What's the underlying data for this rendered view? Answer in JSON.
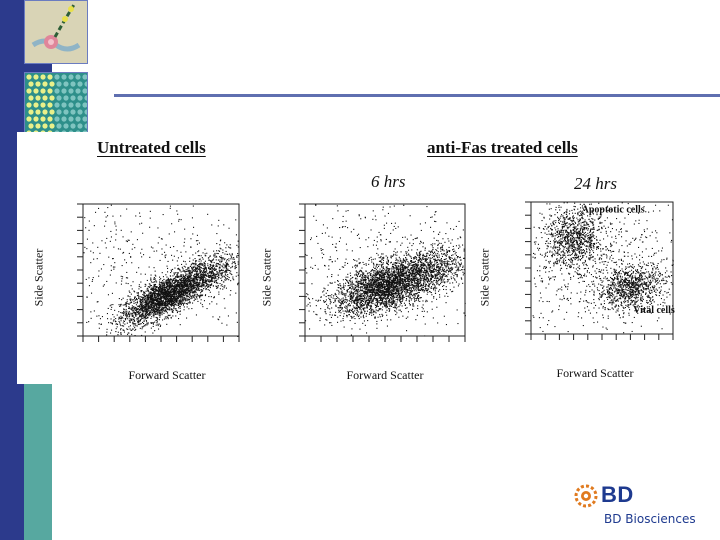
{
  "slide": {
    "colors": {
      "sidebar": "#2c3a8c",
      "rule": "#5f6fb0",
      "brand": "#1e3a8f",
      "logo_orange": "#e07a1f"
    },
    "decor_icons": [
      "lipid-bilayer-thumbnail-icon",
      "cell-array-thumbnail-icon"
    ]
  },
  "figure": {
    "heading_left": "Untreated cells",
    "heading_right": "anti-Fas treated cells",
    "time_6": "6 hrs",
    "time_24": "24 hrs"
  },
  "chart_data": [
    {
      "type": "scatter",
      "xlabel": "Forward Scatter",
      "ylabel": "Side Scatter",
      "xlim": [
        0,
        1
      ],
      "ylim": [
        0,
        1
      ],
      "grid": false,
      "clusters": [
        {
          "cx": 0.52,
          "cy": 0.3,
          "sx": 0.14,
          "sy": 0.07,
          "n": 2600,
          "tilt": 0.55
        },
        {
          "cx": 0.78,
          "cy": 0.46,
          "sx": 0.12,
          "sy": 0.08,
          "n": 700,
          "tilt": 0.5
        },
        {
          "cx": 0.45,
          "cy": 0.5,
          "sx": 0.4,
          "sy": 0.3,
          "n": 500,
          "tilt": 0
        }
      ]
    },
    {
      "type": "scatter",
      "xlabel": "Forward Scatter",
      "ylabel": "Side Scatter",
      "xlim": [
        0,
        1
      ],
      "ylim": [
        0,
        1
      ],
      "grid": false,
      "clusters": [
        {
          "cx": 0.5,
          "cy": 0.38,
          "sx": 0.16,
          "sy": 0.09,
          "n": 2800,
          "tilt": 0.35
        },
        {
          "cx": 0.78,
          "cy": 0.5,
          "sx": 0.13,
          "sy": 0.09,
          "n": 700,
          "tilt": 0.3
        },
        {
          "cx": 0.45,
          "cy": 0.55,
          "sx": 0.42,
          "sy": 0.3,
          "n": 650,
          "tilt": 0
        }
      ]
    },
    {
      "type": "scatter",
      "xlabel": "Forward Scatter",
      "ylabel": "Side Scatter",
      "xlim": [
        0,
        1
      ],
      "ylim": [
        0,
        1
      ],
      "grid": false,
      "annotations": [
        "Apoptotic cells",
        "Vital cells"
      ],
      "clusters": [
        {
          "cx": 0.3,
          "cy": 0.72,
          "sx": 0.1,
          "sy": 0.12,
          "n": 900,
          "tilt": 0
        },
        {
          "cx": 0.7,
          "cy": 0.36,
          "sx": 0.12,
          "sy": 0.08,
          "n": 900,
          "tilt": 0.2
        },
        {
          "cx": 0.45,
          "cy": 0.55,
          "sx": 0.35,
          "sy": 0.28,
          "n": 700,
          "tilt": 0
        }
      ]
    }
  ],
  "logo": {
    "mark": "BD",
    "name": "BD Biosciences"
  }
}
